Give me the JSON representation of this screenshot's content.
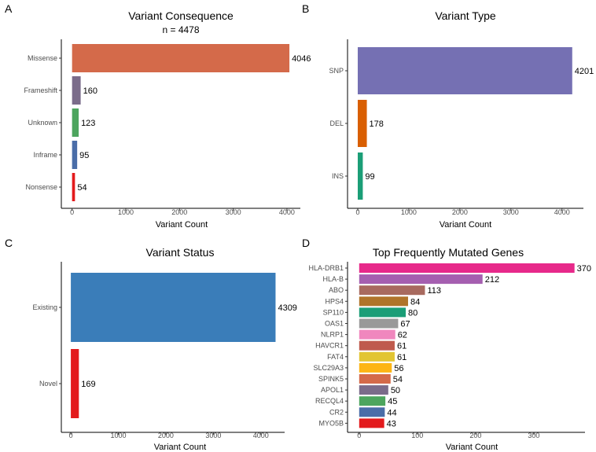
{
  "chart_data": [
    {
      "type": "bar",
      "panel": "A",
      "title": "Variant Consequence",
      "subtitle": "n =  4478",
      "xlabel": "Variant Count",
      "ylabel": "",
      "orientation": "horizontal",
      "xlim": [
        -200,
        4250
      ],
      "ticks": [
        0,
        1000,
        2000,
        3000,
        4000
      ],
      "categories": [
        "Missense",
        "Frameshift",
        "Unknown",
        "Inframe",
        "Nonsense"
      ],
      "values": [
        4046,
        160,
        123,
        95,
        54
      ],
      "colors": [
        "#D46A4A",
        "#7B6C8A",
        "#4DA55E",
        "#4A6DA8",
        "#E31A1C"
      ]
    },
    {
      "type": "bar",
      "panel": "B",
      "title": "Variant Type",
      "xlabel": "Variant Count",
      "ylabel": "",
      "orientation": "horizontal",
      "xlim": [
        -200,
        4420
      ],
      "ticks": [
        0,
        1000,
        2000,
        3000,
        4000
      ],
      "categories": [
        "SNP",
        "DEL",
        "INS"
      ],
      "values": [
        4201,
        178,
        99
      ],
      "colors": [
        "#7570B3",
        "#D95F02",
        "#1B9E77"
      ]
    },
    {
      "type": "bar",
      "panel": "C",
      "title": "Variant Status",
      "xlabel": "Variant Count",
      "ylabel": "",
      "orientation": "horizontal",
      "xlim": [
        -200,
        4500
      ],
      "ticks": [
        0,
        1000,
        2000,
        3000,
        4000
      ],
      "categories": [
        "Existing",
        "Novel"
      ],
      "values": [
        4309,
        169
      ],
      "colors": [
        "#3A7DB9",
        "#E31A1C"
      ]
    },
    {
      "type": "bar",
      "panel": "D",
      "title": "Top Frequently Mutated Genes",
      "xlabel": "Variant Count",
      "ylabel": "",
      "orientation": "horizontal",
      "xlim": [
        -20,
        388
      ],
      "ticks": [
        0,
        100,
        200,
        300
      ],
      "categories": [
        "HLA-DRB1",
        "HLA-B",
        "ABO",
        "HPS4",
        "SP110",
        "OAS1",
        "NLRP1",
        "HAVCR1",
        "FAT4",
        "SLC29A3",
        "SPINK5",
        "APOL1",
        "RECQL4",
        "CR2",
        "MYO5B"
      ],
      "values": [
        370,
        212,
        113,
        84,
        80,
        67,
        62,
        61,
        61,
        56,
        54,
        50,
        45,
        44,
        43
      ],
      "colors": [
        "#E7298A",
        "#A55FB0",
        "#A86A5F",
        "#B0742A",
        "#1B9E77",
        "#999999",
        "#F087BE",
        "#BF5B4D",
        "#E2C533",
        "#FDB515",
        "#D46A4A",
        "#7B6C8A",
        "#4DA55E",
        "#4A6DA8",
        "#E31A1C"
      ]
    }
  ]
}
